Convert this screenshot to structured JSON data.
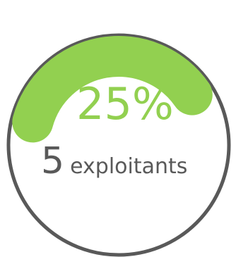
{
  "progress": {
    "fraction": 0.25,
    "percent_label": "25%",
    "count": "5",
    "unit_label": "exploitants"
  },
  "colors": {
    "accent": "#92d050",
    "track": "#595959",
    "text": "#595959"
  }
}
